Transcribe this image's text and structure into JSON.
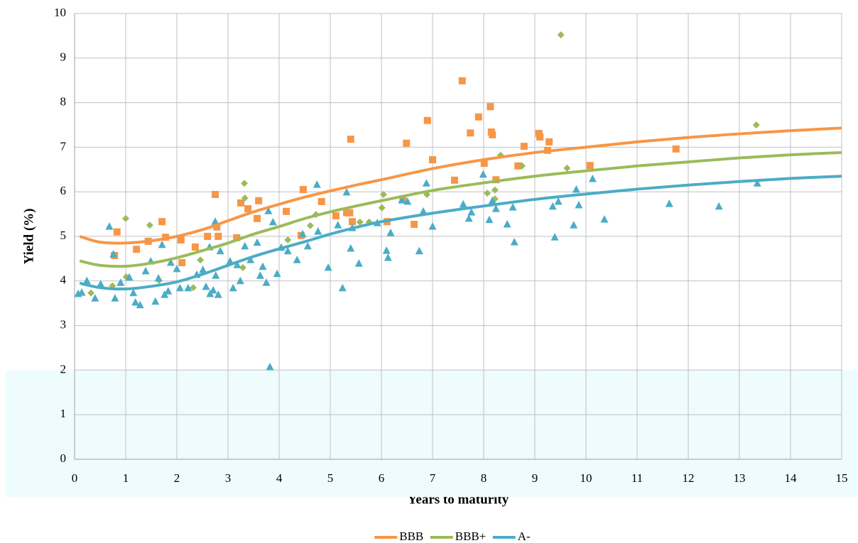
{
  "chart_data": {
    "type": "scatter",
    "x_label": "Years to maturity",
    "y_label": "Yield (%)",
    "xlim": [
      0,
      15
    ],
    "ylim": [
      0,
      10
    ],
    "xticks": [
      0,
      1,
      2,
      3,
      4,
      5,
      6,
      7,
      8,
      9,
      10,
      11,
      12,
      13,
      14,
      15
    ],
    "yticks": [
      0,
      1,
      2,
      3,
      4,
      5,
      6,
      7,
      8,
      9,
      10
    ],
    "grid": true,
    "legend": "bottom",
    "band": {
      "from": 0,
      "to": 2,
      "color": "#eefcfd"
    },
    "series": [
      {
        "name": "BBB",
        "color": "#f79646",
        "marker": "square",
        "x": [
          0.83,
          0.78,
          1.21,
          1.44,
          1.71,
          1.78,
          2.08,
          2.1,
          2.36,
          2.6,
          2.75,
          2.78,
          2.81,
          3.17,
          3.25,
          3.39,
          3.57,
          3.6,
          4.14,
          4.43,
          4.47,
          4.83,
          5.11,
          5.32,
          5.4,
          5.43,
          5.38,
          6.11,
          6.42,
          6.49,
          6.64,
          6.9,
          7.0,
          7.43,
          7.58,
          7.74,
          7.9,
          8.01,
          8.13,
          8.15,
          8.17,
          8.24,
          8.67,
          8.79,
          9.08,
          9.1,
          9.28,
          9.25,
          10.08,
          11.76
        ],
        "values": [
          5.1,
          4.57,
          4.71,
          4.89,
          5.33,
          4.98,
          4.92,
          4.41,
          4.76,
          5.0,
          5.94,
          5.21,
          5.0,
          4.97,
          5.75,
          5.62,
          5.4,
          5.8,
          5.56,
          5.02,
          6.05,
          5.78,
          5.46,
          5.53,
          7.18,
          5.33,
          5.53,
          5.33,
          5.84,
          7.09,
          5.27,
          7.6,
          6.72,
          6.26,
          8.49,
          7.32,
          7.68,
          6.64,
          7.91,
          7.34,
          7.28,
          6.27,
          6.58,
          7.02,
          7.31,
          7.23,
          7.12,
          6.93,
          6.59,
          6.96
        ],
        "fit": {
          "x": [
            0.1,
            0.5,
            1,
            1.5,
            2,
            2.5,
            3,
            3.5,
            4,
            4.5,
            5,
            5.5,
            6,
            7,
            8,
            9,
            10,
            11,
            12,
            13,
            14,
            15
          ],
          "values": [
            5.0,
            4.87,
            4.85,
            4.9,
            5.0,
            5.15,
            5.35,
            5.55,
            5.72,
            5.88,
            6.02,
            6.15,
            6.27,
            6.52,
            6.72,
            6.88,
            7.0,
            7.12,
            7.22,
            7.3,
            7.37,
            7.43
          ]
        }
      },
      {
        "name": "BBB+",
        "color": "#9bbb59",
        "marker": "diamond",
        "x": [
          0.32,
          0.74,
          1.0,
          1.01,
          1.47,
          1.65,
          2.32,
          2.46,
          3.32,
          3.33,
          3.29,
          4.17,
          4.61,
          4.72,
          5.58,
          5.76,
          6.01,
          6.04,
          6.89,
          8.07,
          8.22,
          8.22,
          8.33,
          8.75,
          9.51,
          9.63,
          13.33
        ],
        "values": [
          3.73,
          3.89,
          5.4,
          4.09,
          5.25,
          4.01,
          3.85,
          4.47,
          6.19,
          5.86,
          4.3,
          4.92,
          5.24,
          5.49,
          5.32,
          5.32,
          5.64,
          5.94,
          5.94,
          5.97,
          6.04,
          5.84,
          6.82,
          6.58,
          9.52,
          6.53,
          7.5
        ],
        "fit": {
          "x": [
            0.1,
            0.5,
            1,
            1.5,
            2,
            2.5,
            3,
            3.5,
            4,
            4.5,
            5,
            5.5,
            6,
            7,
            8,
            9,
            10,
            11,
            12,
            13,
            14,
            15
          ],
          "values": [
            4.45,
            4.35,
            4.33,
            4.4,
            4.52,
            4.68,
            4.85,
            5.05,
            5.22,
            5.4,
            5.55,
            5.68,
            5.8,
            6.03,
            6.2,
            6.35,
            6.47,
            6.58,
            6.67,
            6.76,
            6.83,
            6.88
          ]
        }
      },
      {
        "name": "A-",
        "color": "#4bacc6",
        "marker": "triangle",
        "x": [
          0.07,
          0.14,
          0.24,
          0.4,
          0.51,
          0.68,
          0.76,
          0.79,
          0.9,
          1.07,
          1.15,
          1.19,
          1.28,
          1.39,
          1.49,
          1.58,
          1.64,
          1.71,
          1.76,
          1.83,
          1.88,
          2.0,
          2.06,
          2.22,
          2.39,
          2.51,
          2.57,
          2.64,
          2.65,
          2.71,
          2.75,
          2.76,
          2.81,
          2.85,
          3.04,
          3.1,
          3.18,
          3.24,
          3.33,
          3.44,
          3.57,
          3.63,
          3.68,
          3.75,
          3.79,
          3.82,
          3.88,
          3.96,
          4.04,
          4.17,
          4.35,
          4.46,
          4.56,
          4.74,
          4.76,
          4.96,
          5.15,
          5.24,
          5.32,
          5.4,
          5.43,
          5.56,
          5.92,
          6.1,
          6.13,
          6.18,
          6.4,
          6.51,
          6.74,
          6.82,
          6.88,
          7.0,
          7.6,
          7.71,
          7.76,
          7.99,
          8.11,
          8.17,
          8.24,
          8.46,
          8.57,
          8.6,
          9.35,
          9.39,
          9.46,
          9.76,
          9.81,
          9.86,
          10.13,
          10.36,
          11.63,
          12.6,
          13.35
        ],
        "values": [
          3.71,
          3.74,
          4.0,
          3.61,
          3.93,
          5.22,
          4.6,
          3.61,
          3.96,
          4.08,
          3.73,
          3.52,
          3.46,
          4.22,
          4.44,
          3.54,
          4.06,
          4.81,
          3.69,
          3.77,
          4.41,
          4.27,
          3.84,
          3.84,
          4.14,
          4.25,
          3.87,
          4.76,
          3.71,
          3.79,
          5.33,
          4.12,
          3.69,
          4.67,
          4.44,
          3.84,
          4.36,
          4.0,
          4.78,
          4.47,
          4.86,
          4.12,
          4.32,
          3.96,
          5.57,
          2.07,
          5.32,
          4.16,
          4.75,
          4.67,
          4.47,
          5.05,
          4.78,
          6.16,
          5.11,
          4.3,
          5.25,
          3.84,
          5.99,
          4.73,
          5.19,
          4.39,
          5.3,
          4.68,
          4.52,
          5.08,
          5.81,
          5.78,
          4.67,
          5.56,
          6.19,
          5.22,
          5.72,
          5.4,
          5.54,
          6.39,
          5.37,
          5.8,
          5.62,
          5.27,
          5.65,
          4.87,
          5.67,
          4.98,
          5.78,
          5.25,
          6.05,
          5.7,
          6.29,
          5.38,
          5.73,
          5.67,
          6.19
        ],
        "fit": {
          "x": [
            0.1,
            0.5,
            1,
            1.5,
            2,
            2.5,
            3,
            3.5,
            4,
            4.5,
            5,
            5.5,
            6,
            7,
            8,
            9,
            10,
            11,
            12,
            13,
            14,
            15
          ],
          "values": [
            3.95,
            3.85,
            3.82,
            3.88,
            3.98,
            4.15,
            4.35,
            4.55,
            4.72,
            4.88,
            5.05,
            5.2,
            5.33,
            5.52,
            5.68,
            5.83,
            5.95,
            6.06,
            6.15,
            6.23,
            6.3,
            6.35
          ]
        }
      }
    ]
  }
}
